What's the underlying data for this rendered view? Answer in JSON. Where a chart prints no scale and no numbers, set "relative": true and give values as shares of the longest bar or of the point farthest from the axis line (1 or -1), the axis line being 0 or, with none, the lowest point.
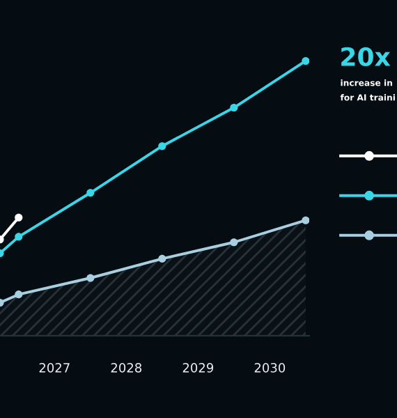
{
  "chart_data": {
    "type": "line",
    "relative": true,
    "title": "20x",
    "annotations": [
      "increase in",
      "for AI traini"
    ],
    "xlim": [
      2026.24,
      2030.55
    ],
    "xticks": [
      2027,
      2028,
      2029,
      2030
    ],
    "tick_labels": "x",
    "marker": "circle",
    "series": [
      {
        "color": "#ffffff",
        "x": [
          2026.24,
          2026.5
        ],
        "values": [
          0.35,
          0.43
        ]
      },
      {
        "color": "#3ad6e8",
        "x": [
          2026.24,
          2026.5,
          2027.5,
          2028.5,
          2029.5,
          2030.5
        ],
        "values": [
          0.3,
          0.36,
          0.52,
          0.69,
          0.83,
          1.0
        ]
      },
      {
        "type": "area",
        "color": "#a8cfe0",
        "x": [
          2026.24,
          2026.5,
          2027.5,
          2028.5,
          2029.5,
          2030.5
        ],
        "values": [
          0.12,
          0.15,
          0.21,
          0.28,
          0.34,
          0.42
        ]
      }
    ]
  }
}
